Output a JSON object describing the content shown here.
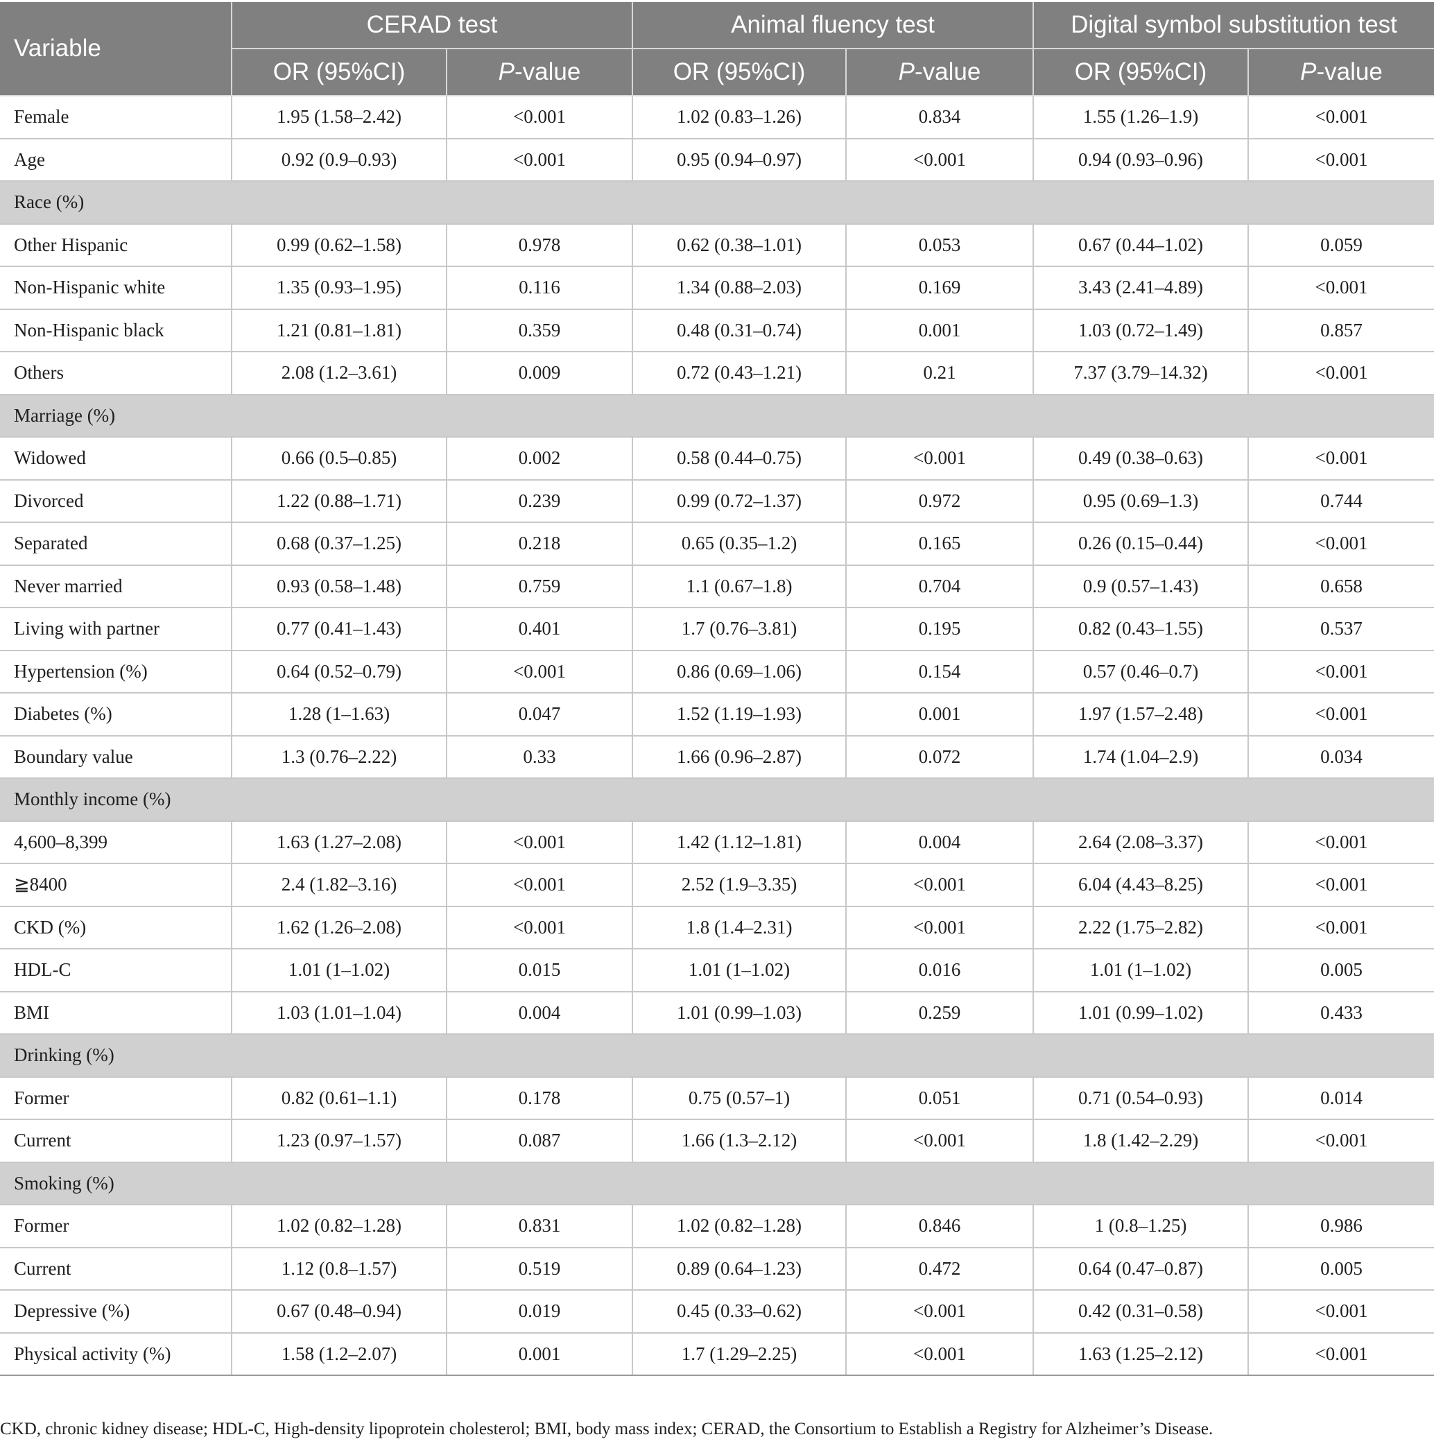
{
  "table": {
    "header": {
      "variable": "Variable",
      "groups": [
        "CERAD test",
        "Animal fluency test",
        "Digital symbol substitution test"
      ],
      "or_label": "OR (95%CI)",
      "p_letter": "P",
      "p_suffix": "-value"
    },
    "rows": [
      {
        "label": "Female",
        "v": [
          "1.95 (1.58–2.42)",
          "<0.001",
          "1.02 (0.83–1.26)",
          "0.834",
          "1.55 (1.26–1.9)",
          "<0.001"
        ]
      },
      {
        "label": "Age",
        "v": [
          "0.92 (0.9–0.93)",
          "<0.001",
          "0.95 (0.94–0.97)",
          "<0.001",
          "0.94 (0.93–0.96)",
          "<0.001"
        ]
      },
      {
        "label": "Race (%)",
        "section": true
      },
      {
        "label": "Other Hispanic",
        "v": [
          "0.99 (0.62–1.58)",
          "0.978",
          "0.62 (0.38–1.01)",
          "0.053",
          "0.67 (0.44–1.02)",
          "0.059"
        ]
      },
      {
        "label": "Non-Hispanic white",
        "v": [
          "1.35 (0.93–1.95)",
          "0.116",
          "1.34 (0.88–2.03)",
          "0.169",
          "3.43 (2.41–4.89)",
          "<0.001"
        ]
      },
      {
        "label": "Non-Hispanic black",
        "v": [
          "1.21 (0.81–1.81)",
          "0.359",
          "0.48 (0.31–0.74)",
          "0.001",
          "1.03 (0.72–1.49)",
          "0.857"
        ]
      },
      {
        "label": "Others",
        "v": [
          "2.08 (1.2–3.61)",
          "0.009",
          "0.72 (0.43–1.21)",
          "0.21",
          "7.37 (3.79–14.32)",
          "<0.001"
        ]
      },
      {
        "label": "Marriage (%)",
        "section": true
      },
      {
        "label": "Widowed",
        "v": [
          "0.66 (0.5–0.85)",
          "0.002",
          "0.58 (0.44–0.75)",
          "<0.001",
          "0.49 (0.38–0.63)",
          "<0.001"
        ]
      },
      {
        "label": "Divorced",
        "v": [
          "1.22 (0.88–1.71)",
          "0.239",
          "0.99 (0.72–1.37)",
          "0.972",
          "0.95 (0.69–1.3)",
          "0.744"
        ]
      },
      {
        "label": "Separated",
        "v": [
          "0.68 (0.37–1.25)",
          "0.218",
          "0.65 (0.35–1.2)",
          "0.165",
          "0.26 (0.15–0.44)",
          "<0.001"
        ]
      },
      {
        "label": "Never married",
        "v": [
          "0.93 (0.58–1.48)",
          "0.759",
          "1.1 (0.67–1.8)",
          "0.704",
          "0.9 (0.57–1.43)",
          "0.658"
        ]
      },
      {
        "label": "Living with partner",
        "v": [
          "0.77 (0.41–1.43)",
          "0.401",
          "1.7 (0.76–3.81)",
          "0.195",
          "0.82 (0.43–1.55)",
          "0.537"
        ]
      },
      {
        "label": "Hypertension (%)",
        "v": [
          "0.64 (0.52–0.79)",
          "<0.001",
          "0.86 (0.69–1.06)",
          "0.154",
          "0.57 (0.46–0.7)",
          "<0.001"
        ]
      },
      {
        "label": "Diabetes (%)",
        "v": [
          "1.28 (1–1.63)",
          "0.047",
          "1.52 (1.19–1.93)",
          "0.001",
          "1.97 (1.57–2.48)",
          "<0.001"
        ]
      },
      {
        "label": "Boundary value",
        "v": [
          "1.3 (0.76–2.22)",
          "0.33",
          "1.66 (0.96–2.87)",
          "0.072",
          "1.74 (1.04–2.9)",
          "0.034"
        ]
      },
      {
        "label": "Monthly income (%)",
        "section": true
      },
      {
        "label": "4,600–8,399",
        "v": [
          "1.63 (1.27–2.08)",
          "<0.001",
          "1.42 (1.12–1.81)",
          "0.004",
          "2.64 (2.08–3.37)",
          "<0.001"
        ]
      },
      {
        "label": "≧8400",
        "v": [
          "2.4 (1.82–3.16)",
          "<0.001",
          "2.52 (1.9–3.35)",
          "<0.001",
          "6.04 (4.43–8.25)",
          "<0.001"
        ]
      },
      {
        "label": "CKD (%)",
        "v": [
          "1.62 (1.26–2.08)",
          "<0.001",
          "1.8 (1.4–2.31)",
          "<0.001",
          "2.22 (1.75–2.82)",
          "<0.001"
        ]
      },
      {
        "label": "HDL-C",
        "v": [
          "1.01 (1–1.02)",
          "0.015",
          "1.01 (1–1.02)",
          "0.016",
          "1.01 (1–1.02)",
          "0.005"
        ]
      },
      {
        "label": "BMI",
        "v": [
          "1.03 (1.01–1.04)",
          "0.004",
          "1.01 (0.99–1.03)",
          "0.259",
          "1.01 (0.99–1.02)",
          "0.433"
        ]
      },
      {
        "label": "Drinking (%)",
        "section": true
      },
      {
        "label": "Former",
        "v": [
          "0.82 (0.61–1.1)",
          "0.178",
          "0.75 (0.57–1)",
          "0.051",
          "0.71 (0.54–0.93)",
          "0.014"
        ]
      },
      {
        "label": "Current",
        "v": [
          "1.23 (0.97–1.57)",
          "0.087",
          "1.66 (1.3–2.12)",
          "<0.001",
          "1.8 (1.42–2.29)",
          "<0.001"
        ]
      },
      {
        "label": "Smoking (%)",
        "section": true
      },
      {
        "label": "Former",
        "v": [
          "1.02 (0.82–1.28)",
          "0.831",
          "1.02 (0.82–1.28)",
          "0.846",
          "1 (0.8–1.25)",
          "0.986"
        ]
      },
      {
        "label": "Current",
        "v": [
          "1.12 (0.8–1.57)",
          "0.519",
          "0.89 (0.64–1.23)",
          "0.472",
          "0.64 (0.47–0.87)",
          "0.005"
        ]
      },
      {
        "label": "Depressive (%)",
        "v": [
          "0.67 (0.48–0.94)",
          "0.019",
          "0.45 (0.33–0.62)",
          "<0.001",
          "0.42 (0.31–0.58)",
          "<0.001"
        ]
      },
      {
        "label": "Physical activity (%)",
        "v": [
          "1.58 (1.2–2.07)",
          "0.001",
          "1.7 (1.29–2.25)",
          "<0.001",
          "1.63 (1.25–2.12)",
          "<0.001"
        ]
      }
    ]
  },
  "footnote": "CKD, chronic kidney disease; HDL-C, High-density lipoprotein cholesterol; BMI, body mass index; CERAD, the Consortium to Establish a Registry for Alzheimer’s Disease."
}
